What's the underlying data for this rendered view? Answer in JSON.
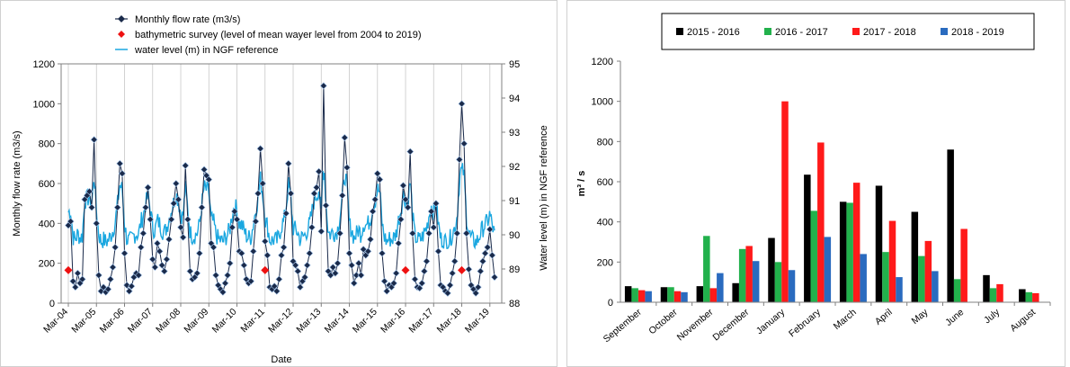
{
  "chart_data": [
    {
      "type": "line",
      "xlabel": "Date",
      "ylabel": "Monthly flow rate (m3/s)",
      "ylabel_right": "Water level (m) in NGF reference",
      "ylim": [
        0,
        1200
      ],
      "ylim_right": [
        88,
        95
      ],
      "yticks": [
        "0",
        "200",
        "400",
        "600",
        "800",
        "1000",
        "1200"
      ],
      "yticks_right": [
        "88",
        "89",
        "90",
        "91",
        "92",
        "93",
        "94",
        "95"
      ],
      "x_tick_labels": [
        "Mar-04",
        "Mar-05",
        "Mar-06",
        "Mar-07",
        "Mar-08",
        "Mar-09",
        "Mar-10",
        "Mar-11",
        "Mar-12",
        "Mar-13",
        "Mar-14",
        "Mar-15",
        "Mar-16",
        "Mar-17",
        "Mar-18",
        "Mar-19"
      ],
      "grid": "vertical",
      "legend_position": "top",
      "series": [
        {
          "name": "Monthly flow rate (m3/s)",
          "color": "#1a2a4a",
          "marker": "diamond",
          "axis": "left",
          "start_month": "Mar-04",
          "values": [
            390,
            410,
            110,
            80,
            150,
            100,
            120,
            520,
            540,
            560,
            480,
            820,
            400,
            140,
            60,
            80,
            55,
            70,
            120,
            180,
            280,
            480,
            700,
            650,
            250,
            90,
            60,
            85,
            130,
            150,
            140,
            280,
            350,
            480,
            580,
            420,
            220,
            180,
            300,
            260,
            190,
            160,
            220,
            320,
            420,
            500,
            600,
            520,
            380,
            330,
            690,
            420,
            160,
            120,
            130,
            150,
            250,
            480,
            670,
            640,
            620,
            300,
            280,
            140,
            90,
            70,
            55,
            100,
            140,
            200,
            380,
            460,
            420,
            260,
            250,
            190,
            120,
            100,
            110,
            260,
            410,
            550,
            775,
            600,
            310,
            240,
            80,
            70,
            85,
            60,
            120,
            240,
            280,
            450,
            700,
            550,
            210,
            190,
            160,
            80,
            110,
            130,
            190,
            250,
            380,
            550,
            580,
            660,
            360,
            1090,
            490,
            160,
            140,
            180,
            150,
            200,
            350,
            540,
            830,
            680,
            250,
            190,
            100,
            140,
            200,
            140,
            270,
            240,
            260,
            320,
            460,
            520,
            650,
            620,
            250,
            110,
            60,
            90,
            80,
            100,
            150,
            300,
            420,
            590,
            520,
            480,
            760,
            350,
            120,
            80,
            75,
            100,
            160,
            210,
            350,
            460,
            380,
            500,
            260,
            90,
            80,
            60,
            50,
            90,
            150,
            210,
            350,
            720,
            1000,
            800,
            350,
            170,
            90,
            70,
            50,
            80,
            160,
            210,
            250,
            280,
            370,
            240,
            130
          ]
        },
        {
          "name": "bathymetric survey (level of mean wayer level from 2004 to 2019)",
          "color": "#ee1111",
          "marker": "diamond",
          "axis": "left",
          "points": [
            {
              "date": "Mar-04",
              "value": 165
            },
            {
              "date": "Mar-11",
              "value": 165
            },
            {
              "date": "Mar-16",
              "value": 165
            },
            {
              "date": "Mar-18",
              "value": 165
            }
          ]
        },
        {
          "name": "water level (m) in NGF reference",
          "color": "#1aa7e0",
          "axis": "right",
          "range_m": [
            89.6,
            92.9
          ]
        }
      ]
    },
    {
      "type": "bar",
      "ylabel": "m³ / s",
      "ylim": [
        0,
        1200
      ],
      "yticks": [
        "0",
        "200",
        "400",
        "600",
        "800",
        "1000",
        "1200"
      ],
      "legend_position": "top",
      "categories": [
        "September",
        "October",
        "November",
        "December",
        "January",
        "February",
        "March",
        "April",
        "May",
        "June",
        "July",
        "August"
      ],
      "series": [
        {
          "name": "2015 - 2016",
          "color": "#000000",
          "values": [
            80,
            75,
            80,
            95,
            320,
            635,
            500,
            580,
            450,
            760,
            135,
            65
          ]
        },
        {
          "name": "2016 - 2017",
          "color": "#22b14c",
          "values": [
            70,
            75,
            330,
            265,
            200,
            455,
            495,
            250,
            230,
            115,
            70,
            50
          ]
        },
        {
          "name": "2017 - 2018",
          "color": "#ff1a1a",
          "values": [
            60,
            55,
            70,
            280,
            1000,
            795,
            595,
            405,
            305,
            365,
            90,
            45
          ]
        },
        {
          "name": "2018 - 2019",
          "color": "#2a6bbf",
          "values": [
            55,
            50,
            145,
            205,
            160,
            325,
            240,
            125,
            155,
            null,
            null,
            null
          ]
        }
      ]
    }
  ]
}
